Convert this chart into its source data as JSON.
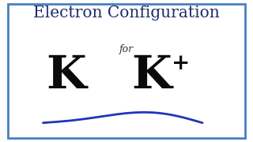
{
  "title": "Electron Configuration",
  "subtitle": "for",
  "symbol_left": "K",
  "symbol_right": "K",
  "superscript": "+",
  "bg_color": "#ffffff",
  "border_color": "#4a7fc1",
  "title_color": "#1a2a6c",
  "text_color": "#0a0a0a",
  "subtitle_color": "#333333",
  "title_fontsize": 14.5,
  "subtitle_fontsize": 9,
  "symbol_fontsize": 42,
  "super_fontsize": 20,
  "wave_color": "#2233bb",
  "wave_linewidth": 2.0
}
